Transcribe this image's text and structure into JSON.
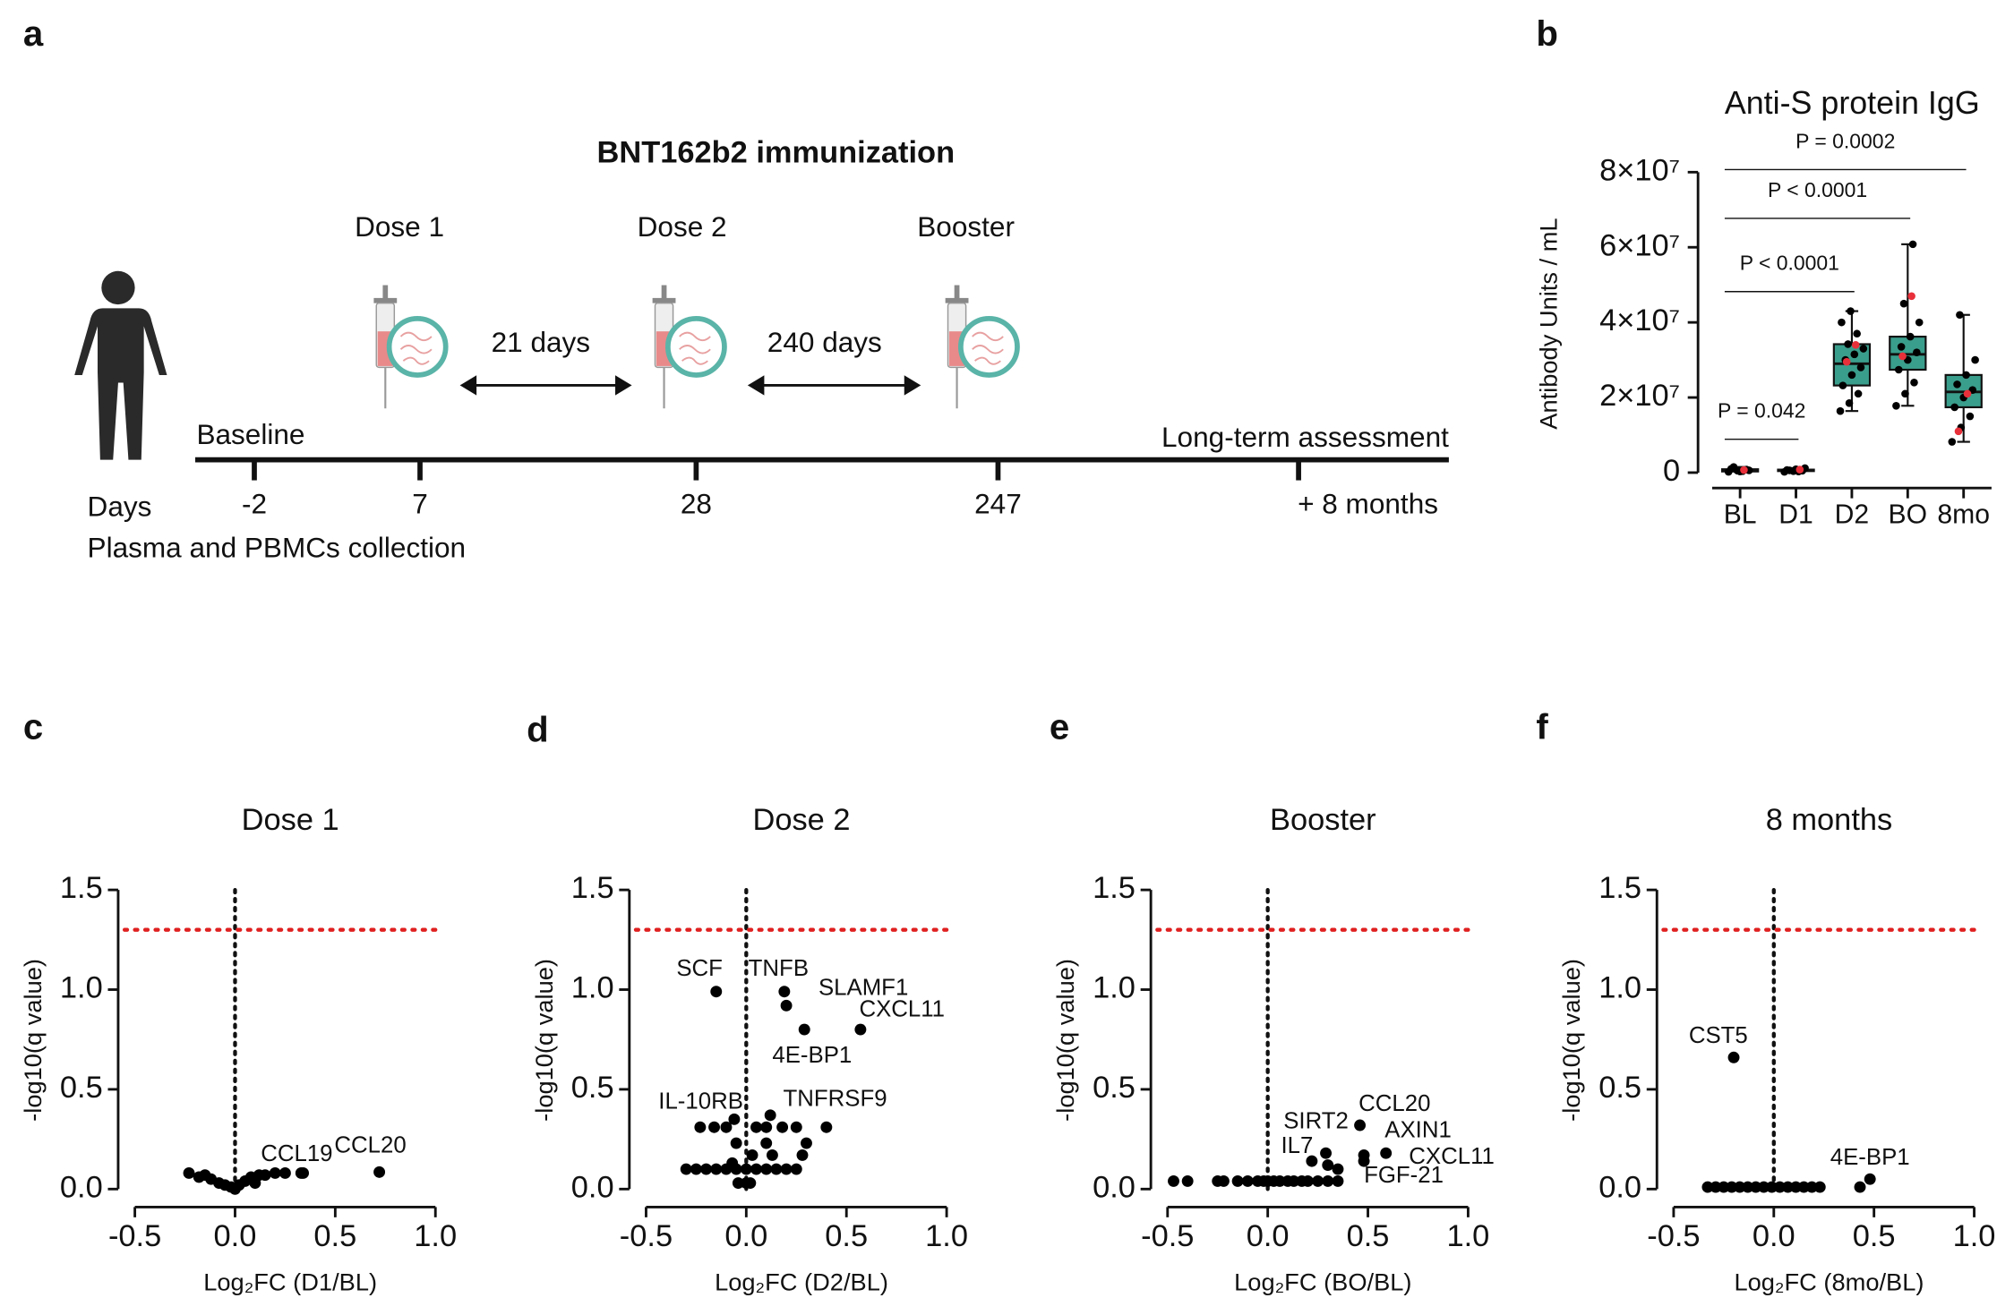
{
  "panel_labels": [
    "a",
    "b",
    "c",
    "d",
    "e",
    "f"
  ],
  "timeline": {
    "title": "BNT162b2 immunization",
    "doses": [
      "Dose 1",
      "Dose 2",
      "Booster"
    ],
    "intervals": [
      "21 days",
      "240 days"
    ],
    "start_label": "Baseline",
    "end_label": "Long-term assessment",
    "days_label": "Days",
    "days": [
      "-2",
      "7",
      "28",
      "247",
      "+ 8 months"
    ],
    "collection": "Plasma and PBMCs collection"
  },
  "chart_data": [
    {
      "type": "box",
      "title": "Anti-S protein IgG",
      "ylabel": "Antibody Units / mL",
      "categories": [
        "BL",
        "D1",
        "D2",
        "BO",
        "8mo"
      ],
      "ylim": [
        0,
        80000000
      ],
      "yticks": [
        0,
        {
          "value": 20000000,
          "label": "2×10⁷"
        },
        {
          "value": 40000000,
          "label": "4×10⁷"
        },
        {
          "value": 60000000,
          "label": "6×10⁷"
        },
        {
          "value": 80000000,
          "label": "8×10⁷"
        }
      ],
      "color": "#3a9e8c",
      "highlight_color": "#e8303a",
      "boxes": [
        {
          "min": 200000,
          "q1": 300000,
          "median": 600000,
          "q3": 900000,
          "max": 1500000,
          "points": [
            200000,
            500000,
            800000,
            1000000,
            300000,
            600000,
            1500000,
            400000
          ],
          "highlight": [
            700000
          ]
        },
        {
          "min": 200000,
          "q1": 400000,
          "median": 600000,
          "q3": 800000,
          "max": 1200000,
          "points": [
            200000,
            400000,
            500000,
            700000,
            900000,
            1200000,
            600000,
            300000
          ],
          "highlight": [
            800000
          ]
        },
        {
          "min": 16400000,
          "q1": 23200000,
          "median": 29000000,
          "q3": 34200000,
          "max": 43000000,
          "points": [
            16400000,
            18500000,
            21000000,
            23200000,
            26000000,
            28000000,
            30000000,
            31500000,
            33000000,
            34200000,
            37000000,
            40000000,
            43000000
          ],
          "highlight": [
            34000000,
            29500000
          ]
        },
        {
          "min": 17800000,
          "q1": 27400000,
          "median": 31500000,
          "q3": 36200000,
          "max": 60800000,
          "points": [
            17800000,
            21000000,
            24000000,
            27400000,
            30000000,
            32000000,
            33500000,
            36200000,
            40000000,
            45000000,
            60800000
          ],
          "highlight": [
            47000000,
            31000000
          ]
        },
        {
          "min": 8200000,
          "q1": 17400000,
          "median": 21500000,
          "q3": 26000000,
          "max": 42000000,
          "points": [
            8200000,
            12000000,
            15000000,
            17400000,
            20000000,
            22000000,
            23500000,
            26000000,
            30000000,
            42000000
          ],
          "highlight": [
            21000000,
            11000000
          ]
        }
      ],
      "comparisons": [
        {
          "groups": [
            "BL",
            "D1"
          ],
          "label": "P = 0.042"
        },
        {
          "groups": [
            "BL",
            "D2"
          ],
          "label": "P < 0.0001"
        },
        {
          "groups": [
            "BL",
            "BO"
          ],
          "label": "P < 0.0001"
        },
        {
          "groups": [
            "BL",
            "8mo"
          ],
          "label": "P = 0.0002"
        }
      ]
    },
    {
      "type": "scatter",
      "title": "Dose 1",
      "xlabel": "Log₂FC (D1/BL)",
      "ylabel": "-log10(q value)",
      "xlim": [
        -0.5,
        1.0
      ],
      "xticks": [
        -0.5,
        {
          "value": 0,
          "label": "0.0"
        },
        0.5,
        {
          "value": 1,
          "label": "1.0"
        }
      ],
      "ylim": [
        0,
        1.5
      ],
      "yticks": [
        {
          "value": 0,
          "label": "0.0"
        },
        0.5,
        {
          "value": 1,
          "label": "1.0"
        },
        1.5
      ],
      "threshold": 1.3,
      "threshold_color": "#e02020",
      "color": "#000000",
      "x": [
        -0.23,
        -0.15,
        -0.12,
        -0.08,
        -0.05,
        -0.02,
        0,
        0.02,
        0.05,
        0.08,
        0.12,
        0.15,
        0.2,
        0.25,
        0.33,
        -0.18,
        0.1
      ],
      "y": [
        0.08,
        0.07,
        0.05,
        0.03,
        0.02,
        0.01,
        0,
        0.02,
        0.04,
        0.06,
        0.07,
        0.07,
        0.08,
        0.08,
        0.08,
        0.06,
        0.03
      ],
      "labeled": [
        {
          "label": "CCL19",
          "x": 0.34,
          "y": 0.08
        },
        {
          "label": "CCL20",
          "x": 0.72,
          "y": 0.085
        }
      ]
    },
    {
      "type": "scatter",
      "title": "Dose 2",
      "xlabel": "Log₂FC (D2/BL)",
      "ylabel": "-log10(q value)",
      "xlim": [
        -0.5,
        1.0
      ],
      "xticks": [
        -0.5,
        {
          "value": 0,
          "label": "0.0"
        },
        0.5,
        {
          "value": 1,
          "label": "1.0"
        }
      ],
      "ylim": [
        0,
        1.5
      ],
      "yticks": [
        {
          "value": 0,
          "label": "0.0"
        },
        0.5,
        {
          "value": 1,
          "label": "1.0"
        },
        1.5
      ],
      "threshold": 1.3,
      "threshold_color": "#e02020",
      "color": "#000000",
      "x": [
        -0.23,
        -0.16,
        -0.1,
        0.05,
        0.1,
        0.18,
        0.25,
        0.4,
        -0.05,
        0.1,
        0.3,
        0.03,
        0.13,
        0.28,
        -0.3,
        -0.25,
        -0.2,
        -0.15,
        -0.1,
        -0.05,
        0,
        0.05,
        0.1,
        0.15,
        0.2,
        0.25,
        -0.04,
        0,
        0.02,
        -0.07
      ],
      "y": [
        0.31,
        0.31,
        0.31,
        0.31,
        0.31,
        0.31,
        0.31,
        0.31,
        0.23,
        0.23,
        0.23,
        0.17,
        0.17,
        0.17,
        0.1,
        0.1,
        0.1,
        0.1,
        0.1,
        0.1,
        0.1,
        0.1,
        0.1,
        0.1,
        0.1,
        0.1,
        0.03,
        0.03,
        0.03,
        0.13
      ],
      "labeled": [
        {
          "label": "SCF",
          "x": -0.15,
          "y": 0.99
        },
        {
          "label": "TNFB",
          "x": 0.19,
          "y": 0.99
        },
        {
          "label": "SLAMF1",
          "x": 0.2,
          "y": 0.92
        },
        {
          "label": "CXCL11",
          "x": 0.57,
          "y": 0.8
        },
        {
          "label": "4E-BP1",
          "x": 0.29,
          "y": 0.8
        },
        {
          "label": "TNFRSF9",
          "x": 0.12,
          "y": 0.37
        },
        {
          "label": "IL-10RB",
          "x": -0.06,
          "y": 0.35
        }
      ]
    },
    {
      "type": "scatter",
      "title": "Booster",
      "xlabel": "Log₂FC (BO/BL)",
      "ylabel": "-log10(q value)",
      "xlim": [
        -0.5,
        1.0
      ],
      "xticks": [
        -0.5,
        {
          "value": 0,
          "label": "0.0"
        },
        0.5,
        {
          "value": 1,
          "label": "1.0"
        }
      ],
      "ylim": [
        0,
        1.5
      ],
      "yticks": [
        {
          "value": 0,
          "label": "0.0"
        },
        0.5,
        {
          "value": 1,
          "label": "1.0"
        },
        1.5
      ],
      "threshold": 1.3,
      "threshold_color": "#e02020",
      "color": "#000000",
      "x": [
        -0.47,
        -0.4,
        -0.25,
        -0.22,
        -0.15,
        -0.1,
        -0.05,
        -0.02,
        0,
        0.03,
        0.06,
        0.1,
        0.13,
        0.17,
        0.2,
        0.25,
        0.3,
        0.35,
        0.3,
        0.35
      ],
      "y": [
        0.04,
        0.04,
        0.04,
        0.04,
        0.04,
        0.04,
        0.04,
        0.04,
        0.04,
        0.04,
        0.04,
        0.04,
        0.04,
        0.04,
        0.04,
        0.04,
        0.04,
        0.04,
        0.12,
        0.1
      ],
      "labeled": [
        {
          "label": "CCL20",
          "x": 0.46,
          "y": 0.32
        },
        {
          "label": "AXIN1",
          "x": 0.59,
          "y": 0.18
        },
        {
          "label": "CXCL11",
          "x": 0.48,
          "y": 0.17
        },
        {
          "label": "SIRT2",
          "x": 0.29,
          "y": 0.18
        },
        {
          "label": "IL7",
          "x": 0.22,
          "y": 0.14
        },
        {
          "label": "FGF-21",
          "x": 0.48,
          "y": 0.14
        }
      ]
    },
    {
      "type": "scatter",
      "title": "8 months",
      "xlabel": "Log₂FC (8mo/BL)",
      "ylabel": "-log10(q value)",
      "xlim": [
        -0.5,
        1.0
      ],
      "xticks": [
        -0.5,
        {
          "value": 0,
          "label": "0.0"
        },
        0.5,
        {
          "value": 1,
          "label": "1.0"
        }
      ],
      "ylim": [
        0,
        1.5
      ],
      "yticks": [
        {
          "value": 0,
          "label": "0.0"
        },
        0.5,
        {
          "value": 1,
          "label": "1.0"
        },
        1.5
      ],
      "threshold": 1.3,
      "threshold_color": "#e02020",
      "color": "#000000",
      "x": [
        -0.33,
        -0.29,
        -0.25,
        -0.21,
        -0.17,
        -0.13,
        -0.09,
        -0.05,
        -0.01,
        0.03,
        0.07,
        0.11,
        0.15,
        0.19,
        0.23,
        0.43
      ],
      "y": [
        0.01,
        0.01,
        0.01,
        0.01,
        0.01,
        0.01,
        0.01,
        0.01,
        0.01,
        0.01,
        0.01,
        0.01,
        0.01,
        0.01,
        0.01,
        0.01
      ],
      "labeled": [
        {
          "label": "CST5",
          "x": -0.2,
          "y": 0.66
        },
        {
          "label": "4E-BP1",
          "x": 0.48,
          "y": 0.05
        }
      ]
    }
  ]
}
